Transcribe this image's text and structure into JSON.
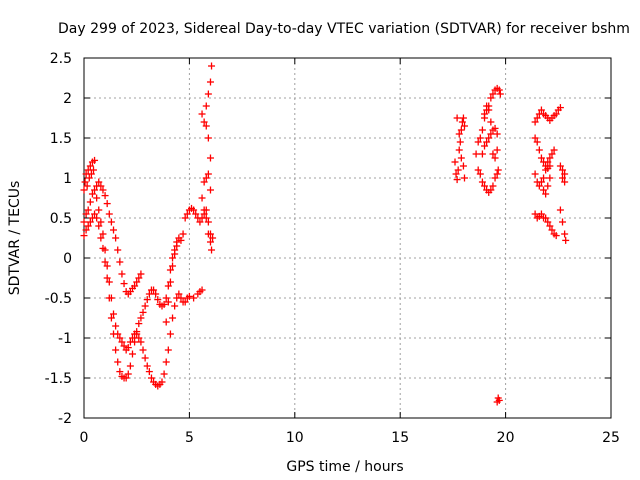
{
  "chart_data": {
    "type": "scatter",
    "title": "Day 299 of 2023, Sidereal Day-to-day VTEC variation (SDTVAR) for receiver bshm",
    "xlabel": "GPS time / hours",
    "ylabel": "SDTVAR / TECUs",
    "xlim": [
      0,
      25
    ],
    "ylim": [
      -2,
      2.5
    ],
    "xticks": [
      0,
      5,
      10,
      15,
      20,
      25
    ],
    "xtick_labels": [
      "0",
      "5",
      "10",
      "15",
      "20",
      "25"
    ],
    "yticks": [
      -2,
      -1.5,
      -1,
      -0.5,
      0,
      0.5,
      1,
      1.5,
      2,
      2.5
    ],
    "ytick_labels": [
      "-2",
      "-1.5",
      "-1",
      "-0.5",
      "0",
      "0.5",
      "1",
      "1.5",
      "2",
      "2.5"
    ],
    "grid": true,
    "marker": "+",
    "color": "#ff0000",
    "series": [
      {
        "name": "SDTVAR",
        "points": [
          [
            0.0,
            0.85
          ],
          [
            0.05,
            0.95
          ],
          [
            0.1,
            1.05
          ],
          [
            0.15,
            0.9
          ],
          [
            0.2,
            1.1
          ],
          [
            0.25,
            1.0
          ],
          [
            0.3,
            1.15
          ],
          [
            0.35,
            1.05
          ],
          [
            0.4,
            1.2
          ],
          [
            0.45,
            1.1
          ],
          [
            0.5,
            1.22
          ],
          [
            0.0,
            0.45
          ],
          [
            0.1,
            0.55
          ],
          [
            0.2,
            0.6
          ],
          [
            0.3,
            0.7
          ],
          [
            0.4,
            0.8
          ],
          [
            0.5,
            0.85
          ],
          [
            0.6,
            0.9
          ],
          [
            0.7,
            0.95
          ],
          [
            0.8,
            0.9
          ],
          [
            0.9,
            0.85
          ],
          [
            1.0,
            0.78
          ],
          [
            1.1,
            0.68
          ],
          [
            1.2,
            0.55
          ],
          [
            1.3,
            0.45
          ],
          [
            1.4,
            0.35
          ],
          [
            1.5,
            0.25
          ],
          [
            1.6,
            0.1
          ],
          [
            1.7,
            -0.05
          ],
          [
            1.8,
            -0.2
          ],
          [
            1.9,
            -0.32
          ],
          [
            2.0,
            -0.42
          ],
          [
            2.1,
            -0.45
          ],
          [
            2.2,
            -0.42
          ],
          [
            2.3,
            -0.38
          ],
          [
            2.4,
            -0.35
          ],
          [
            2.5,
            -0.3
          ],
          [
            2.6,
            -0.25
          ],
          [
            2.7,
            -0.2
          ],
          [
            0.0,
            0.28
          ],
          [
            0.1,
            0.35
          ],
          [
            0.2,
            0.4
          ],
          [
            0.3,
            0.45
          ],
          [
            0.4,
            0.5
          ],
          [
            0.5,
            0.55
          ],
          [
            0.6,
            0.5
          ],
          [
            0.7,
            0.4
          ],
          [
            0.8,
            0.25
          ],
          [
            0.9,
            0.12
          ],
          [
            1.0,
            -0.05
          ],
          [
            1.1,
            -0.25
          ],
          [
            1.2,
            -0.5
          ],
          [
            1.3,
            -0.75
          ],
          [
            1.4,
            -0.95
          ],
          [
            1.5,
            -1.15
          ],
          [
            1.6,
            -1.3
          ],
          [
            1.7,
            -1.42
          ],
          [
            1.8,
            -1.48
          ],
          [
            1.9,
            -1.5
          ],
          [
            2.0,
            -1.5
          ],
          [
            2.1,
            -1.45
          ],
          [
            2.2,
            -1.35
          ],
          [
            2.3,
            -1.2
          ],
          [
            2.4,
            -1.05
          ],
          [
            2.5,
            -0.92
          ],
          [
            2.6,
            -0.82
          ],
          [
            2.7,
            -0.75
          ],
          [
            2.8,
            -0.68
          ],
          [
            2.9,
            -0.6
          ],
          [
            3.0,
            -0.52
          ],
          [
            3.1,
            -0.45
          ],
          [
            3.2,
            -0.4
          ],
          [
            3.3,
            -0.4
          ],
          [
            3.4,
            -0.45
          ],
          [
            3.5,
            -0.52
          ],
          [
            3.6,
            -0.58
          ],
          [
            3.7,
            -0.6
          ],
          [
            3.8,
            -0.58
          ],
          [
            3.9,
            -0.5
          ],
          [
            4.0,
            -0.35
          ],
          [
            4.1,
            -0.15
          ],
          [
            4.2,
            0.0
          ],
          [
            4.3,
            0.1
          ],
          [
            4.4,
            0.2
          ],
          [
            4.5,
            0.25
          ],
          [
            4.6,
            0.22
          ],
          [
            4.7,
            0.3
          ],
          [
            4.8,
            0.5
          ],
          [
            4.9,
            0.55
          ],
          [
            5.0,
            0.6
          ],
          [
            5.1,
            0.62
          ],
          [
            5.2,
            0.6
          ],
          [
            5.3,
            0.55
          ],
          [
            5.4,
            0.5
          ],
          [
            5.5,
            0.45
          ],
          [
            5.6,
            0.5
          ],
          [
            5.7,
            0.55
          ],
          [
            5.8,
            0.6
          ],
          [
            5.9,
            0.45
          ],
          [
            6.0,
            0.3
          ],
          [
            6.1,
            0.25
          ],
          [
            0.6,
            0.75
          ],
          [
            0.7,
            0.6
          ],
          [
            0.8,
            0.45
          ],
          [
            0.9,
            0.3
          ],
          [
            1.0,
            0.1
          ],
          [
            1.1,
            -0.1
          ],
          [
            1.2,
            -0.3
          ],
          [
            1.3,
            -0.5
          ],
          [
            1.4,
            -0.7
          ],
          [
            1.5,
            -0.85
          ],
          [
            1.6,
            -0.95
          ],
          [
            1.7,
            -1.0
          ],
          [
            1.8,
            -1.05
          ],
          [
            1.9,
            -1.1
          ],
          [
            2.0,
            -1.15
          ],
          [
            2.1,
            -1.12
          ],
          [
            2.2,
            -1.05
          ],
          [
            2.3,
            -1.0
          ],
          [
            2.4,
            -0.95
          ],
          [
            2.5,
            -0.95
          ],
          [
            2.6,
            -1.0
          ],
          [
            2.7,
            -1.05
          ],
          [
            2.8,
            -1.15
          ],
          [
            2.9,
            -1.25
          ],
          [
            3.0,
            -1.35
          ],
          [
            3.1,
            -1.42
          ],
          [
            3.2,
            -1.5
          ],
          [
            3.3,
            -1.55
          ],
          [
            3.4,
            -1.58
          ],
          [
            3.5,
            -1.6
          ],
          [
            3.6,
            -1.58
          ],
          [
            3.7,
            -1.55
          ],
          [
            3.8,
            -1.45
          ],
          [
            3.9,
            -1.3
          ],
          [
            4.0,
            -1.15
          ],
          [
            4.1,
            -0.95
          ],
          [
            4.2,
            -0.75
          ],
          [
            4.3,
            -0.6
          ],
          [
            4.4,
            -0.5
          ],
          [
            4.5,
            -0.45
          ],
          [
            4.6,
            -0.5
          ],
          [
            4.7,
            -0.55
          ],
          [
            4.8,
            -0.55
          ],
          [
            4.9,
            -0.5
          ],
          [
            5.0,
            -0.48
          ],
          [
            5.2,
            -0.5
          ],
          [
            5.4,
            -0.45
          ],
          [
            5.5,
            -0.42
          ],
          [
            5.6,
            -0.4
          ],
          [
            3.9,
            -0.8
          ],
          [
            4.0,
            -0.55
          ],
          [
            4.1,
            -0.3
          ],
          [
            4.2,
            -0.1
          ],
          [
            4.3,
            0.05
          ],
          [
            4.4,
            0.15
          ],
          [
            5.6,
            0.75
          ],
          [
            5.7,
            0.6
          ],
          [
            5.8,
            0.5
          ],
          [
            5.9,
            0.3
          ],
          [
            6.0,
            0.2
          ],
          [
            6.05,
            0.1
          ],
          [
            5.6,
            1.8
          ],
          [
            5.7,
            1.7
          ],
          [
            5.8,
            1.9
          ],
          [
            5.9,
            2.05
          ],
          [
            6.0,
            2.2
          ],
          [
            6.05,
            2.4
          ],
          [
            5.8,
            1.65
          ],
          [
            5.9,
            1.5
          ],
          [
            6.0,
            1.25
          ],
          [
            5.9,
            1.05
          ],
          [
            5.7,
            0.95
          ],
          [
            5.8,
            1.0
          ],
          [
            6.0,
            0.85
          ],
          [
            17.6,
            1.2
          ],
          [
            17.65,
            1.05
          ],
          [
            17.7,
            0.98
          ],
          [
            17.75,
            1.1
          ],
          [
            17.8,
            1.35
          ],
          [
            17.85,
            1.45
          ],
          [
            17.9,
            1.6
          ],
          [
            17.95,
            1.7
          ],
          [
            18.0,
            1.75
          ],
          [
            18.05,
            1.65
          ],
          [
            17.7,
            1.75
          ],
          [
            17.8,
            1.55
          ],
          [
            17.9,
            1.25
          ],
          [
            18.0,
            1.15
          ],
          [
            18.05,
            1.0
          ],
          [
            18.6,
            1.3
          ],
          [
            18.7,
            1.45
          ],
          [
            18.8,
            1.5
          ],
          [
            18.9,
            1.6
          ],
          [
            19.0,
            1.75
          ],
          [
            19.1,
            1.85
          ],
          [
            19.2,
            1.9
          ],
          [
            19.3,
            2.0
          ],
          [
            19.4,
            2.05
          ],
          [
            19.5,
            2.1
          ],
          [
            19.6,
            2.12
          ],
          [
            19.7,
            2.1
          ],
          [
            19.75,
            2.05
          ],
          [
            18.7,
            1.1
          ],
          [
            18.8,
            1.05
          ],
          [
            18.9,
            0.95
          ],
          [
            19.0,
            0.9
          ],
          [
            19.1,
            0.85
          ],
          [
            19.2,
            0.82
          ],
          [
            19.3,
            0.85
          ],
          [
            19.4,
            0.9
          ],
          [
            19.5,
            1.0
          ],
          [
            19.6,
            1.05
          ],
          [
            19.65,
            1.1
          ],
          [
            18.9,
            1.3
          ],
          [
            19.0,
            1.4
          ],
          [
            19.1,
            1.45
          ],
          [
            19.2,
            1.5
          ],
          [
            19.3,
            1.55
          ],
          [
            19.4,
            1.6
          ],
          [
            19.5,
            1.62
          ],
          [
            19.6,
            1.55
          ],
          [
            19.0,
            1.8
          ],
          [
            19.1,
            1.9
          ],
          [
            19.2,
            1.85
          ],
          [
            19.3,
            1.7
          ],
          [
            19.4,
            1.3
          ],
          [
            19.5,
            1.25
          ],
          [
            19.6,
            1.35
          ],
          [
            19.6,
            -1.8
          ],
          [
            19.65,
            -1.75
          ],
          [
            19.7,
            -1.78
          ],
          [
            21.4,
            1.7
          ],
          [
            21.5,
            1.75
          ],
          [
            21.6,
            1.8
          ],
          [
            21.7,
            1.85
          ],
          [
            21.8,
            1.8
          ],
          [
            21.9,
            1.78
          ],
          [
            22.0,
            1.75
          ],
          [
            22.1,
            1.72
          ],
          [
            22.2,
            1.75
          ],
          [
            22.3,
            1.78
          ],
          [
            22.4,
            1.8
          ],
          [
            22.5,
            1.85
          ],
          [
            22.6,
            1.88
          ],
          [
            21.4,
            1.05
          ],
          [
            21.5,
            0.95
          ],
          [
            21.6,
            0.9
          ],
          [
            21.7,
            0.95
          ],
          [
            21.8,
            1.0
          ],
          [
            21.9,
            1.1
          ],
          [
            22.0,
            1.2
          ],
          [
            22.1,
            1.25
          ],
          [
            22.2,
            1.3
          ],
          [
            22.3,
            1.35
          ],
          [
            21.4,
            1.5
          ],
          [
            21.5,
            1.45
          ],
          [
            21.6,
            1.35
          ],
          [
            21.7,
            1.25
          ],
          [
            21.8,
            1.2
          ],
          [
            21.9,
            1.15
          ],
          [
            22.0,
            1.12
          ],
          [
            22.1,
            1.15
          ],
          [
            21.4,
            0.55
          ],
          [
            21.5,
            0.5
          ],
          [
            21.6,
            0.52
          ],
          [
            21.7,
            0.55
          ],
          [
            21.8,
            0.5
          ],
          [
            21.9,
            0.5
          ],
          [
            22.0,
            0.45
          ],
          [
            22.1,
            0.4
          ],
          [
            22.2,
            0.35
          ],
          [
            22.3,
            0.3
          ],
          [
            22.4,
            0.28
          ],
          [
            21.8,
            0.85
          ],
          [
            21.9,
            0.8
          ],
          [
            22.0,
            0.9
          ],
          [
            22.1,
            1.0
          ],
          [
            22.6,
            1.15
          ],
          [
            22.7,
            1.1
          ],
          [
            22.8,
            1.05
          ],
          [
            22.7,
            1.0
          ],
          [
            22.8,
            0.95
          ],
          [
            22.6,
            0.6
          ],
          [
            22.7,
            0.45
          ],
          [
            22.8,
            0.3
          ],
          [
            22.85,
            0.22
          ]
        ]
      }
    ]
  }
}
